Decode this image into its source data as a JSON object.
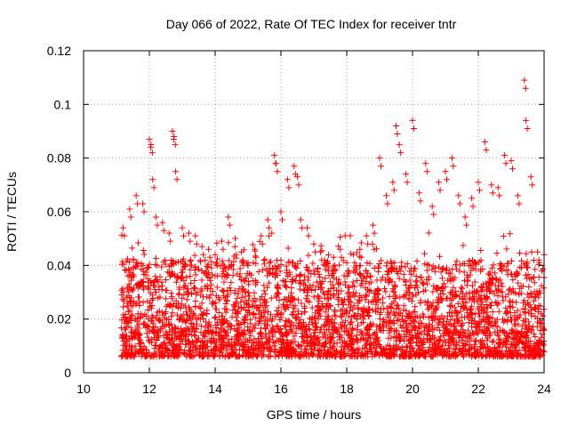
{
  "chart_data": {
    "type": "scatter",
    "title": "Day 066 of 2022, Rate Of TEC Index for receiver tntr",
    "xlabel": "GPS time / hours",
    "ylabel": "ROTI / TECUs",
    "xlim": [
      10,
      24
    ],
    "ylim": [
      0,
      0.12
    ],
    "xticks": [
      "10",
      "12",
      "14",
      "16",
      "18",
      "20",
      "22",
      "24"
    ],
    "yticks": [
      "0",
      "0.02",
      "0.04",
      "0.06",
      "0.08",
      "0.1",
      "0.12"
    ],
    "grid": true,
    "marker": "plus",
    "color": "#ff0000",
    "data_coverage_hours": [
      11.15,
      24.0
    ],
    "series": [
      {
        "name": "ROTI",
        "x": [
          11.2,
          11.4,
          11.6,
          11.8,
          12.0,
          12.05,
          12.1,
          12.2,
          12.4,
          12.6,
          12.7,
          12.75,
          12.8,
          13.0,
          13.2,
          13.4,
          13.6,
          13.8,
          14.0,
          14.2,
          14.4,
          14.6,
          14.8,
          15.0,
          15.2,
          15.4,
          15.6,
          15.8,
          15.85,
          16.0,
          16.2,
          16.4,
          16.5,
          16.6,
          16.8,
          17.0,
          17.2,
          17.4,
          17.6,
          17.8,
          18.0,
          18.2,
          18.4,
          18.6,
          18.8,
          19.0,
          19.2,
          19.4,
          19.5,
          19.6,
          19.8,
          20.0,
          20.2,
          20.4,
          20.6,
          20.8,
          21.0,
          21.2,
          21.4,
          21.6,
          21.8,
          22.0,
          22.2,
          22.4,
          22.6,
          22.8,
          23.0,
          23.2,
          23.4,
          23.45,
          23.6,
          23.8,
          24.0
        ],
        "y": [
          0.054,
          0.061,
          0.066,
          0.063,
          0.087,
          0.085,
          0.072,
          0.058,
          0.056,
          0.052,
          0.09,
          0.088,
          0.075,
          0.054,
          0.052,
          0.051,
          0.047,
          0.046,
          0.044,
          0.049,
          0.058,
          0.047,
          0.045,
          0.04,
          0.046,
          0.051,
          0.057,
          0.081,
          0.078,
          0.06,
          0.072,
          0.077,
          0.073,
          0.057,
          0.054,
          0.048,
          0.045,
          0.041,
          0.043,
          0.046,
          0.041,
          0.044,
          0.046,
          0.051,
          0.055,
          0.08,
          0.066,
          0.071,
          0.092,
          0.085,
          0.074,
          0.094,
          0.067,
          0.078,
          0.062,
          0.071,
          0.075,
          0.08,
          0.066,
          0.058,
          0.065,
          0.071,
          0.086,
          0.07,
          0.069,
          0.081,
          0.079,
          0.066,
          0.109,
          0.094,
          0.073,
          0.045,
          0.044
        ]
      }
    ]
  }
}
